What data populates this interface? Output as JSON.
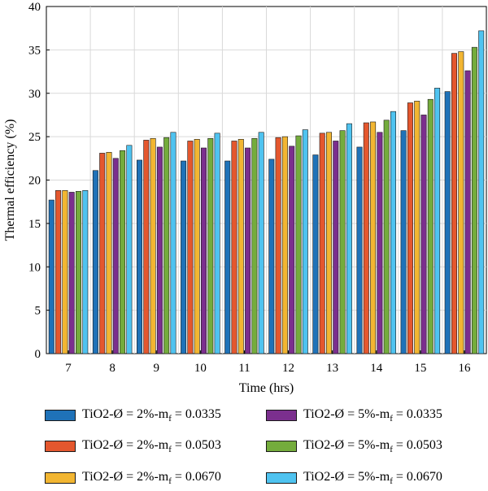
{
  "chart_data": {
    "type": "bar",
    "xlabel": "Time (hrs)",
    "ylabel": "Thermal efficiency (%)",
    "ylim": [
      0,
      40
    ],
    "yticks": [
      "0",
      "5",
      "10",
      "15",
      "20",
      "25",
      "30",
      "35",
      "40"
    ],
    "categories": [
      "7",
      "8",
      "9",
      "10",
      "11",
      "12",
      "13",
      "14",
      "15",
      "16"
    ],
    "grid": true,
    "legend_position": "bottom",
    "series": [
      {
        "name_prefix": "TiO2-Ø = 2%-m",
        "name_sub": "f",
        "name_suffix": " = 0.0335",
        "color": "#1f72b8",
        "values": [
          17.7,
          21.1,
          22.3,
          22.2,
          22.2,
          22.4,
          22.9,
          23.8,
          25.7,
          30.2
        ]
      },
      {
        "name_prefix": "TiO2-Ø = 2%-m",
        "name_sub": "f",
        "name_suffix": " = 0.0503",
        "color": "#e4572e",
        "values": [
          18.8,
          23.1,
          24.6,
          24.5,
          24.5,
          24.9,
          25.4,
          26.6,
          28.9,
          34.6
        ]
      },
      {
        "name_prefix": "TiO2-Ø = 2%-m",
        "name_sub": "f",
        "name_suffix": " = 0.0670",
        "color": "#f2b632",
        "values": [
          18.8,
          23.2,
          24.8,
          24.7,
          24.7,
          25.0,
          25.5,
          26.7,
          29.1,
          34.8
        ]
      },
      {
        "name_prefix": "TiO2-Ø = 5%-m",
        "name_sub": "f",
        "name_suffix": " = 0.0335",
        "color": "#7b2f8e",
        "values": [
          18.6,
          22.5,
          23.8,
          23.7,
          23.7,
          23.9,
          24.5,
          25.5,
          27.5,
          32.6
        ]
      },
      {
        "name_prefix": "TiO2-Ø = 5%-m",
        "name_sub": "f",
        "name_suffix": " = 0.0503",
        "color": "#74ac3c",
        "values": [
          18.7,
          23.4,
          24.9,
          24.8,
          24.8,
          25.1,
          25.7,
          26.9,
          29.3,
          35.3
        ]
      },
      {
        "name_prefix": "TiO2-Ø = 5%-m",
        "name_sub": "f",
        "name_suffix": " = 0.0670",
        "color": "#4fc3f0",
        "values": [
          18.8,
          24.0,
          25.5,
          25.4,
          25.5,
          25.8,
          26.5,
          27.9,
          30.6,
          37.2
        ]
      }
    ]
  }
}
